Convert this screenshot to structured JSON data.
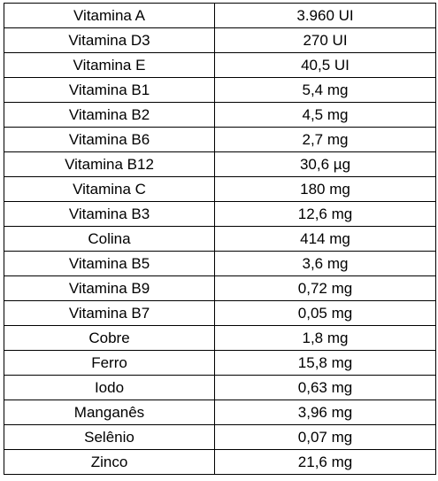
{
  "table": {
    "rows": [
      {
        "name": "Vitamina A",
        "amount": "3.960 UI"
      },
      {
        "name": "Vitamina D3",
        "amount": "270 UI"
      },
      {
        "name": "Vitamina E",
        "amount": "40,5 UI"
      },
      {
        "name": "Vitamina B1",
        "amount": "5,4 mg"
      },
      {
        "name": "Vitamina B2",
        "amount": "4,5 mg"
      },
      {
        "name": "Vitamina B6",
        "amount": "2,7 mg"
      },
      {
        "name": "Vitamina B12",
        "amount": "30,6 µg"
      },
      {
        "name": "Vitamina C",
        "amount": "180 mg"
      },
      {
        "name": "Vitamina B3",
        "amount": "12,6 mg"
      },
      {
        "name": "Colina",
        "amount": "414 mg"
      },
      {
        "name": "Vitamina B5",
        "amount": "3,6 mg"
      },
      {
        "name": "Vitamina B9",
        "amount": "0,72 mg"
      },
      {
        "name": "Vitamina B7",
        "amount": "0,05 mg"
      },
      {
        "name": "Cobre",
        "amount": "1,8 mg"
      },
      {
        "name": "Ferro",
        "amount": "15,8 mg"
      },
      {
        "name": "Iodo",
        "amount": "0,63 mg"
      },
      {
        "name": "Manganês",
        "amount": "3,96 mg"
      },
      {
        "name": "Selênio",
        "amount": "0,07 mg"
      },
      {
        "name": "Zinco",
        "amount": "21,6 mg"
      }
    ]
  }
}
